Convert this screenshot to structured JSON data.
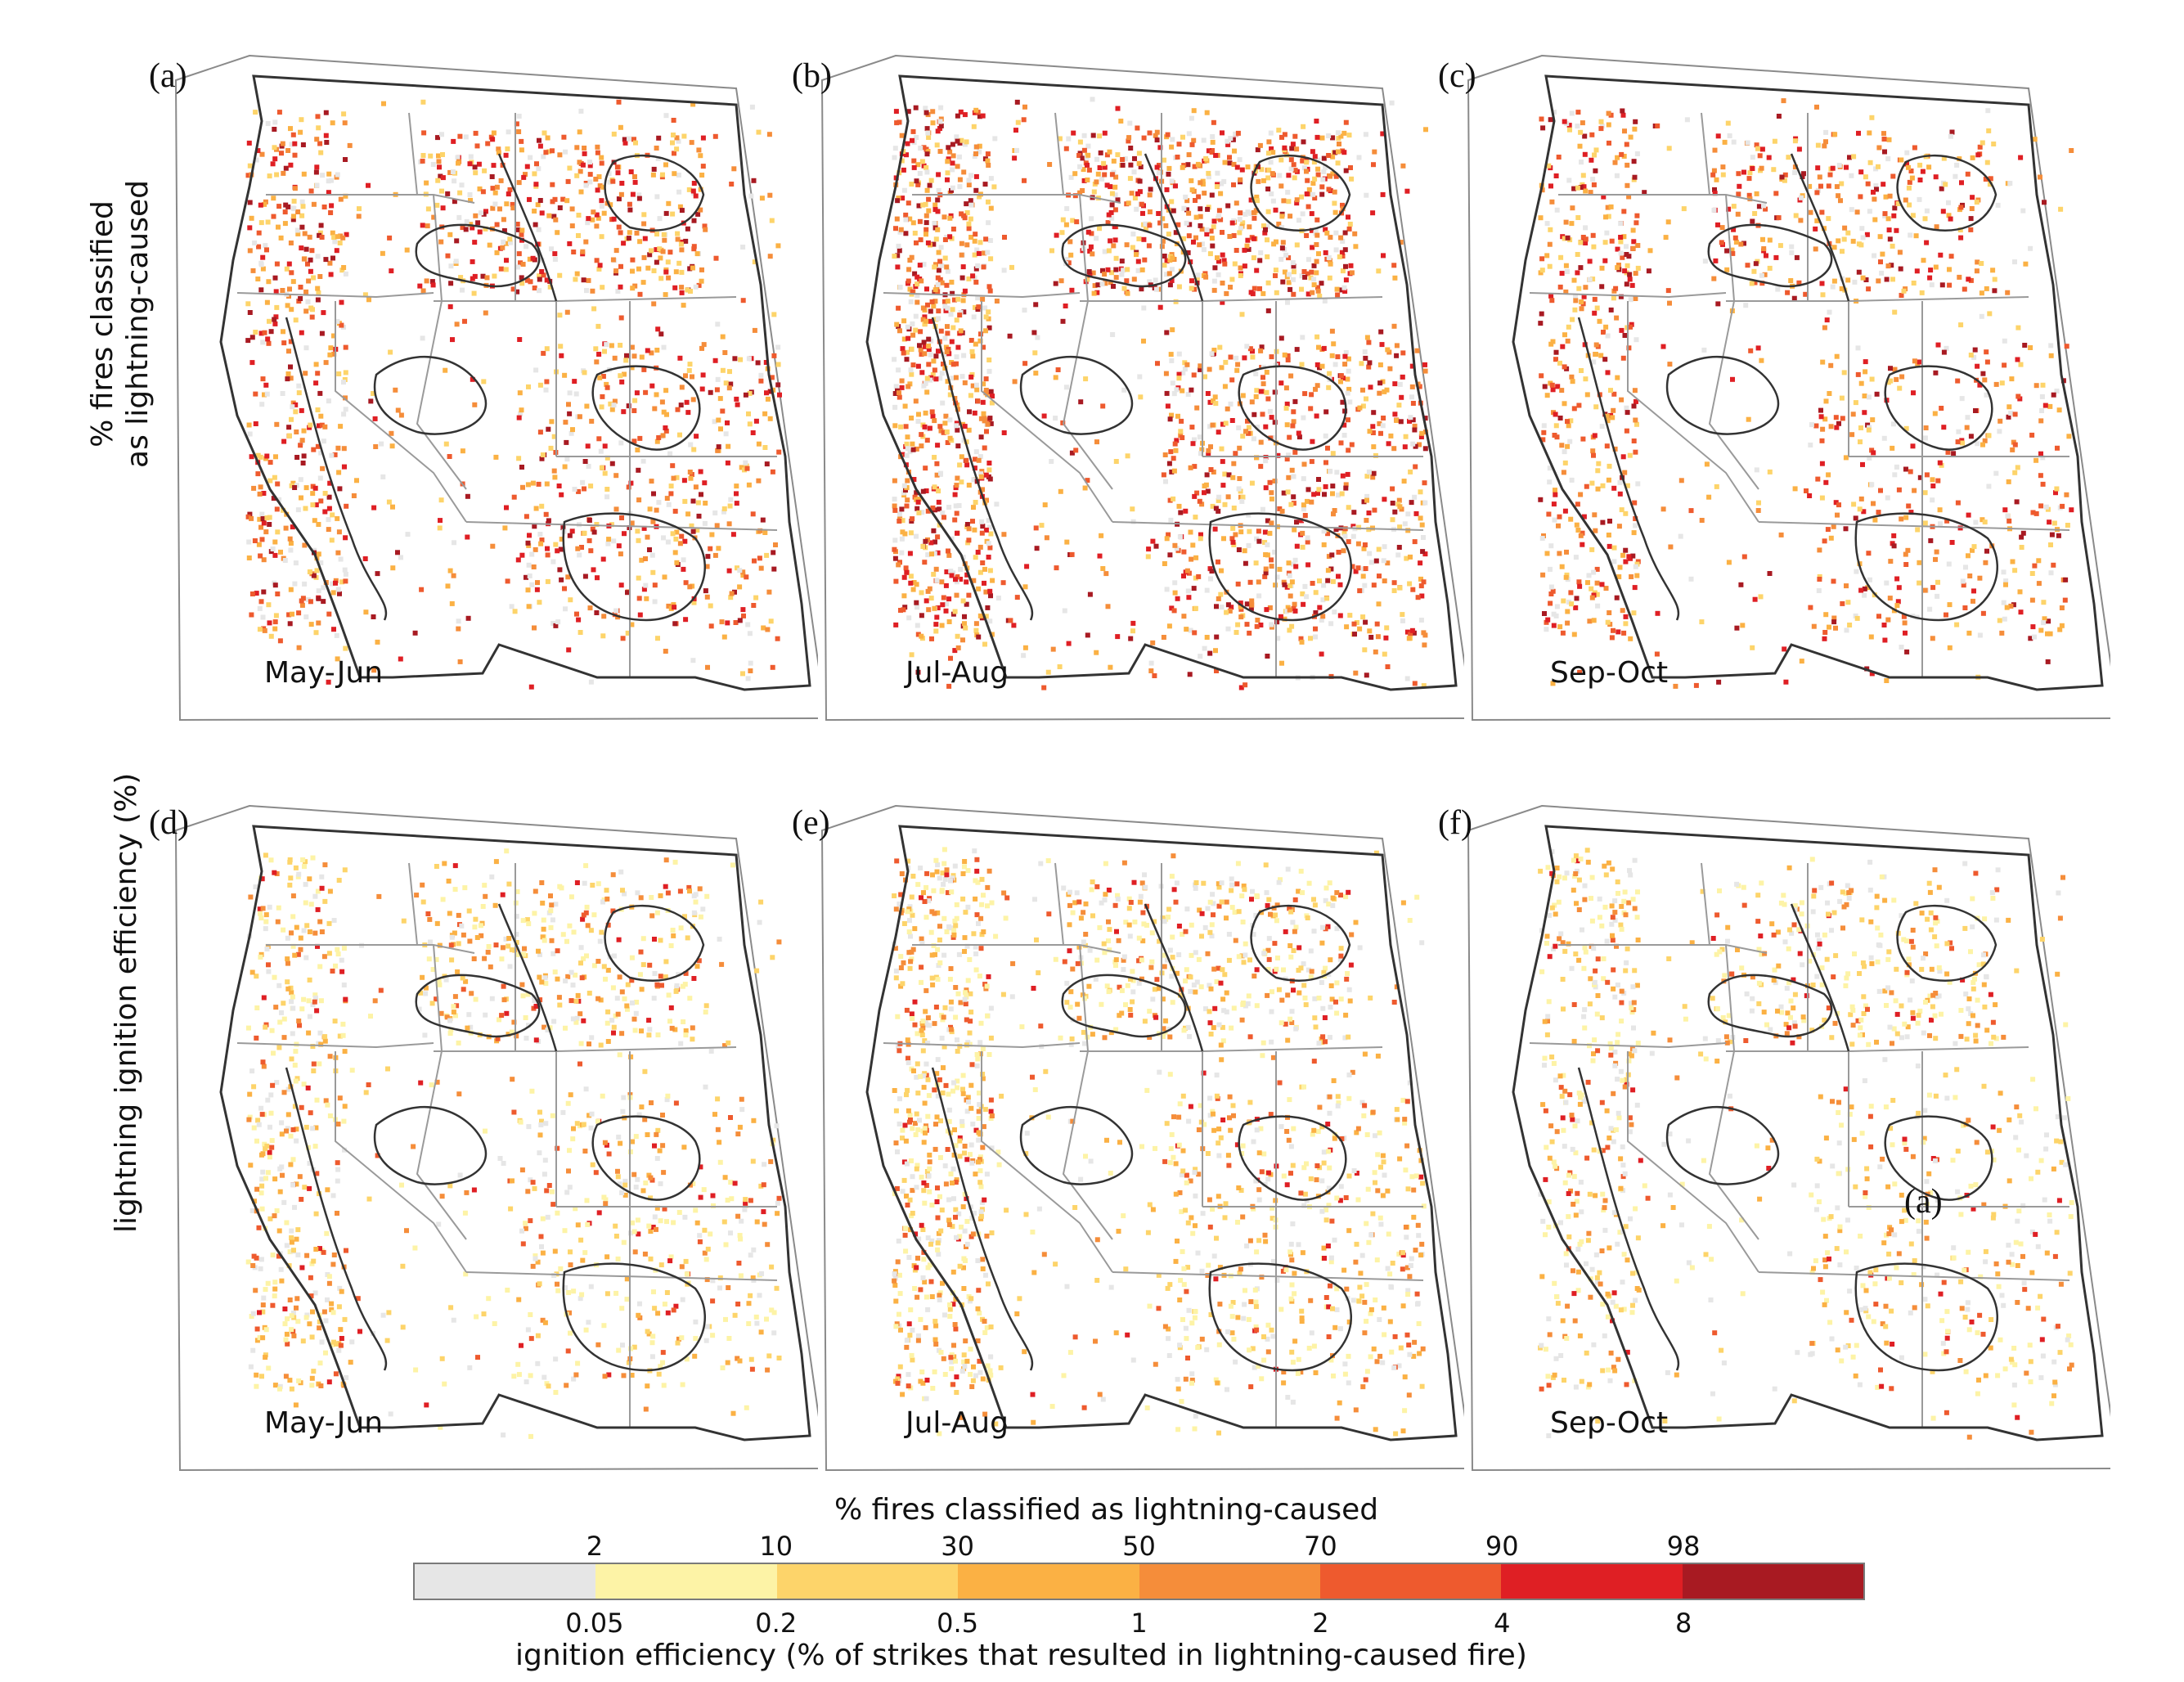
{
  "row_labels": {
    "top": [
      "% fires classified",
      "as lightning-caused"
    ],
    "bottom": "lightning ignition efficiency (%)"
  },
  "panels": [
    {
      "letter": "(a)",
      "season": "May-Jun",
      "row": "top",
      "density": 0.55
    },
    {
      "letter": "(b)",
      "season": "Jul-Aug",
      "row": "top",
      "density": 0.85
    },
    {
      "letter": "(c)",
      "season": "Sep-Oct",
      "row": "top",
      "density": 0.45
    },
    {
      "letter": "(d)",
      "season": "May-Jun",
      "row": "bottom",
      "density": 0.45
    },
    {
      "letter": "(e)",
      "season": "Jul-Aug",
      "row": "bottom",
      "density": 0.6
    },
    {
      "letter": "(f)",
      "season": "Sep-Oct",
      "row": "bottom",
      "density": 0.4
    }
  ],
  "stray_label": "(a)",
  "legend": {
    "top_title": "% fires classified as lightning-caused",
    "top_ticks": [
      "2",
      "10",
      "30",
      "50",
      "70",
      "90",
      "98"
    ],
    "bottom_ticks": [
      "0.05",
      "0.2",
      "0.5",
      "1",
      "2",
      "4",
      "8"
    ],
    "bottom_title": "ignition efficiency (% of strikes that resulted in lightning-caused fire)",
    "colors": [
      "#e6e6e6",
      "#fdf3a6",
      "#fdd46a",
      "#fbb144",
      "#f58d3a",
      "#ee5a2e",
      "#df1f24",
      "#a81a22"
    ]
  }
}
